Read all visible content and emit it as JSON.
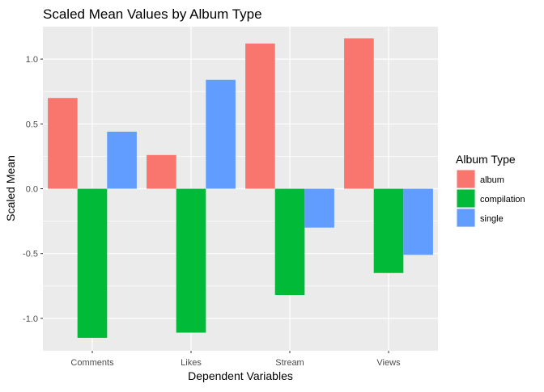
{
  "chart_data": {
    "type": "bar",
    "title": "Scaled Mean Values by Album Type",
    "xlabel": "Dependent Variables",
    "ylabel": "Scaled Mean",
    "categories": [
      "Comments",
      "Likes",
      "Stream",
      "Views"
    ],
    "series": [
      {
        "name": "album",
        "color": "#F8766D",
        "values": [
          0.7,
          0.26,
          1.12,
          1.16
        ]
      },
      {
        "name": "compilation",
        "color": "#00BA38",
        "values": [
          -1.15,
          -1.11,
          -0.82,
          -0.65
        ]
      },
      {
        "name": "single",
        "color": "#619CFF",
        "values": [
          0.44,
          0.84,
          -0.3,
          -0.51
        ]
      }
    ],
    "ylim": [
      -1.25,
      1.25
    ],
    "yticks": [
      -1.0,
      -0.5,
      0.0,
      0.5,
      1.0
    ],
    "ytick_labels": [
      "-1.0",
      "-0.5",
      "0.0",
      "0.5",
      "1.0"
    ],
    "grid": true,
    "legend": {
      "title": "Album Type",
      "position": "right"
    },
    "panel_color": "#EBEBEB",
    "grid_color": "#FFFFFF"
  }
}
